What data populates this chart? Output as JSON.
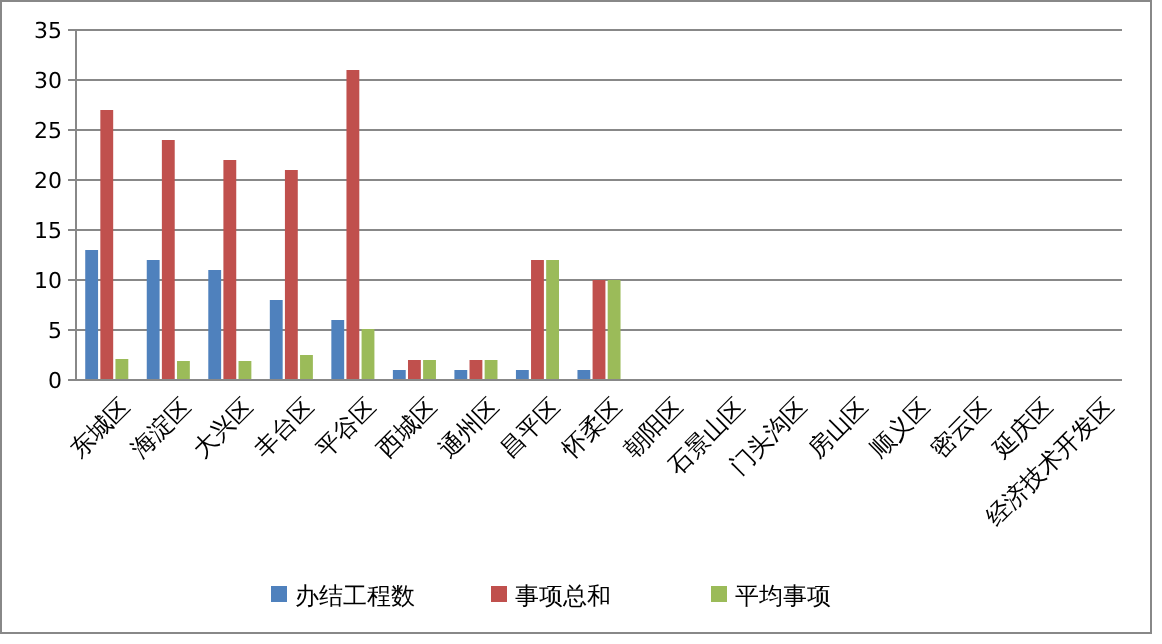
{
  "chart_data": {
    "type": "bar",
    "categories": [
      "东城区",
      "海淀区",
      "大兴区",
      "丰台区",
      "平谷区",
      "西城区",
      "通州区",
      "昌平区",
      "怀柔区",
      "朝阳区",
      "石景山区",
      "门头沟区",
      "房山区",
      "顺义区",
      "密云区",
      "延庆区",
      "经济技术开发区"
    ],
    "series": [
      {
        "name": "办结工程数",
        "color": "#4f81bd",
        "values": [
          13,
          12,
          11,
          8,
          6,
          1,
          1,
          1,
          1,
          null,
          null,
          null,
          null,
          null,
          null,
          null,
          null
        ]
      },
      {
        "name": "事项总和",
        "color": "#c0504d",
        "values": [
          27,
          24,
          22,
          21,
          31,
          2,
          2,
          12,
          10,
          null,
          null,
          null,
          null,
          null,
          null,
          null,
          null
        ]
      },
      {
        "name": "平均事项",
        "color": "#9bbb59",
        "values": [
          2.1,
          1.9,
          1.9,
          2.5,
          5.1,
          2,
          2,
          12,
          10,
          null,
          null,
          null,
          null,
          null,
          null,
          null,
          null
        ]
      }
    ],
    "ylim": [
      0,
      35
    ],
    "yticks": [
      0,
      5,
      10,
      15,
      20,
      25,
      30,
      35
    ],
    "grid": "y",
    "legend": "bottom"
  }
}
